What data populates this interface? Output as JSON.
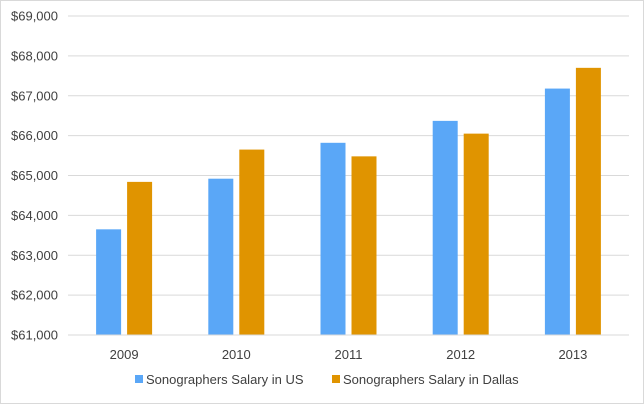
{
  "chart_data": {
    "type": "bar",
    "title": "",
    "xlabel": "",
    "ylabel": "",
    "categories": [
      "2009",
      "2010",
      "2011",
      "2012",
      "2013"
    ],
    "series": [
      {
        "name": "Sonographers Salary in US",
        "color": "#5aa7f7",
        "values": [
          63650,
          64920,
          65820,
          66370,
          67180
        ]
      },
      {
        "name": "Sonographers Salary in Dallas",
        "color": "#e09400",
        "values": [
          64840,
          65650,
          65480,
          66050,
          67700
        ]
      }
    ],
    "ylim": [
      61000,
      69000
    ],
    "yticks": [
      61000,
      62000,
      63000,
      64000,
      65000,
      66000,
      67000,
      68000,
      69000
    ],
    "ytick_labels": [
      "$61,000",
      "$62,000",
      "$63,000",
      "$64,000",
      "$65,000",
      "$66,000",
      "$67,000",
      "$68,000",
      "$69,000"
    ],
    "grid": true,
    "gridline_color": "#d9d9d9",
    "legend_position": "bottom"
  }
}
